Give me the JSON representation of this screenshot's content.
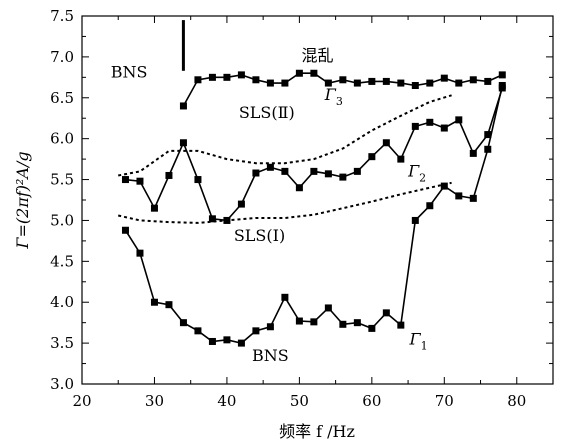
{
  "chart_data": {
    "type": "line",
    "xlabel": "频率 f /Hz",
    "ylabel": "Γ=(2πf)²A/g",
    "xlim": [
      20,
      85
    ],
    "ylim": [
      3.0,
      7.5
    ],
    "x_ticks": [
      "20",
      "30",
      "40",
      "50",
      "60",
      "70",
      "80"
    ],
    "y_ticks": [
      "3.0",
      "3.5",
      "4.0",
      "4.5",
      "5.0",
      "5.5",
      "6.0",
      "6.5",
      "7.0",
      "7.5"
    ],
    "grid": false,
    "series": [
      {
        "name": "Γ3",
        "style": "solid-square",
        "points": [
          [
            34,
            6.4
          ],
          [
            36,
            6.72
          ],
          [
            38,
            6.75
          ],
          [
            40,
            6.75
          ],
          [
            42,
            6.78
          ],
          [
            44,
            6.72
          ],
          [
            46,
            6.68
          ],
          [
            48,
            6.68
          ],
          [
            50,
            6.8
          ],
          [
            52,
            6.8
          ],
          [
            54,
            6.68
          ],
          [
            56,
            6.72
          ],
          [
            58,
            6.68
          ],
          [
            60,
            6.7
          ],
          [
            62,
            6.7
          ],
          [
            64,
            6.68
          ],
          [
            66,
            6.65
          ],
          [
            68,
            6.68
          ],
          [
            70,
            6.74
          ],
          [
            72,
            6.68
          ],
          [
            74,
            6.72
          ],
          [
            76,
            6.7
          ],
          [
            78,
            6.78
          ]
        ]
      },
      {
        "name": "Γ2",
        "style": "solid-square",
        "points": [
          [
            26,
            5.5
          ],
          [
            28,
            5.48
          ],
          [
            30,
            5.15
          ],
          [
            32,
            5.55
          ],
          [
            34,
            5.95
          ],
          [
            36,
            5.5
          ],
          [
            38,
            5.02
          ],
          [
            40,
            5.0
          ],
          [
            42,
            5.2
          ],
          [
            44,
            5.58
          ],
          [
            46,
            5.65
          ],
          [
            48,
            5.6
          ],
          [
            50,
            5.4
          ],
          [
            52,
            5.6
          ],
          [
            54,
            5.57
          ],
          [
            56,
            5.53
          ],
          [
            58,
            5.6
          ],
          [
            60,
            5.78
          ],
          [
            62,
            5.95
          ],
          [
            64,
            5.75
          ],
          [
            66,
            6.15
          ],
          [
            68,
            6.2
          ],
          [
            70,
            6.13
          ],
          [
            72,
            6.23
          ],
          [
            74,
            5.82
          ],
          [
            76,
            6.05
          ],
          [
            78,
            6.62
          ]
        ]
      },
      {
        "name": "Γ1",
        "style": "solid-square",
        "points": [
          [
            26,
            4.88
          ],
          [
            28,
            4.6
          ],
          [
            30,
            4.0
          ],
          [
            32,
            3.97
          ],
          [
            34,
            3.75
          ],
          [
            36,
            3.65
          ],
          [
            38,
            3.52
          ],
          [
            40,
            3.54
          ],
          [
            42,
            3.5
          ],
          [
            44,
            3.65
          ],
          [
            46,
            3.7
          ],
          [
            48,
            4.06
          ],
          [
            50,
            3.77
          ],
          [
            52,
            3.76
          ],
          [
            54,
            3.93
          ],
          [
            56,
            3.73
          ],
          [
            58,
            3.75
          ],
          [
            60,
            3.68
          ],
          [
            62,
            3.87
          ],
          [
            64,
            3.72
          ],
          [
            66,
            5.0
          ],
          [
            68,
            5.18
          ],
          [
            70,
            5.42
          ],
          [
            72,
            5.3
          ],
          [
            74,
            5.27
          ],
          [
            76,
            5.87
          ],
          [
            78,
            6.65
          ]
        ]
      },
      {
        "name": "upper SLS boundary",
        "style": "dashed",
        "points": [
          [
            25,
            5.55
          ],
          [
            28,
            5.6
          ],
          [
            32,
            5.85
          ],
          [
            36,
            5.85
          ],
          [
            40,
            5.75
          ],
          [
            44,
            5.7
          ],
          [
            48,
            5.7
          ],
          [
            52,
            5.75
          ],
          [
            56,
            5.88
          ],
          [
            60,
            6.1
          ],
          [
            64,
            6.28
          ],
          [
            68,
            6.45
          ],
          [
            71,
            6.53
          ]
        ]
      },
      {
        "name": "lower SLS boundary",
        "style": "dashed",
        "points": [
          [
            25,
            5.06
          ],
          [
            28,
            5.0
          ],
          [
            32,
            4.98
          ],
          [
            36,
            4.97
          ],
          [
            40,
            5.0
          ],
          [
            44,
            5.03
          ],
          [
            48,
            5.03
          ],
          [
            52,
            5.07
          ],
          [
            56,
            5.15
          ],
          [
            60,
            5.23
          ],
          [
            64,
            5.32
          ],
          [
            68,
            5.4
          ],
          [
            71,
            5.46
          ]
        ]
      },
      {
        "name": "boundary at 34 Hz",
        "style": "solid-vertical",
        "points": [
          [
            34,
            7.45
          ],
          [
            34,
            6.83
          ]
        ]
      }
    ],
    "annotations": [
      {
        "text": "BNS",
        "x": 26.5,
        "y": 6.75
      },
      {
        "text": "混乱",
        "x": 52.5,
        "y": 6.95
      },
      {
        "text": "SLS(Ⅱ)",
        "x": 45.5,
        "y": 6.25
      },
      {
        "text": "SLS(Ⅰ)",
        "x": 44.5,
        "y": 4.75
      },
      {
        "text": "BNS",
        "x": 46,
        "y": 3.28
      }
    ],
    "series_labels": [
      {
        "name": "Γ",
        "sub": "3",
        "x": 53.5,
        "y": 6.47
      },
      {
        "name": "Γ",
        "sub": "2",
        "x": 65,
        "y": 5.54
      },
      {
        "name": "Γ",
        "sub": "1",
        "x": 65.2,
        "y": 3.48
      }
    ]
  }
}
